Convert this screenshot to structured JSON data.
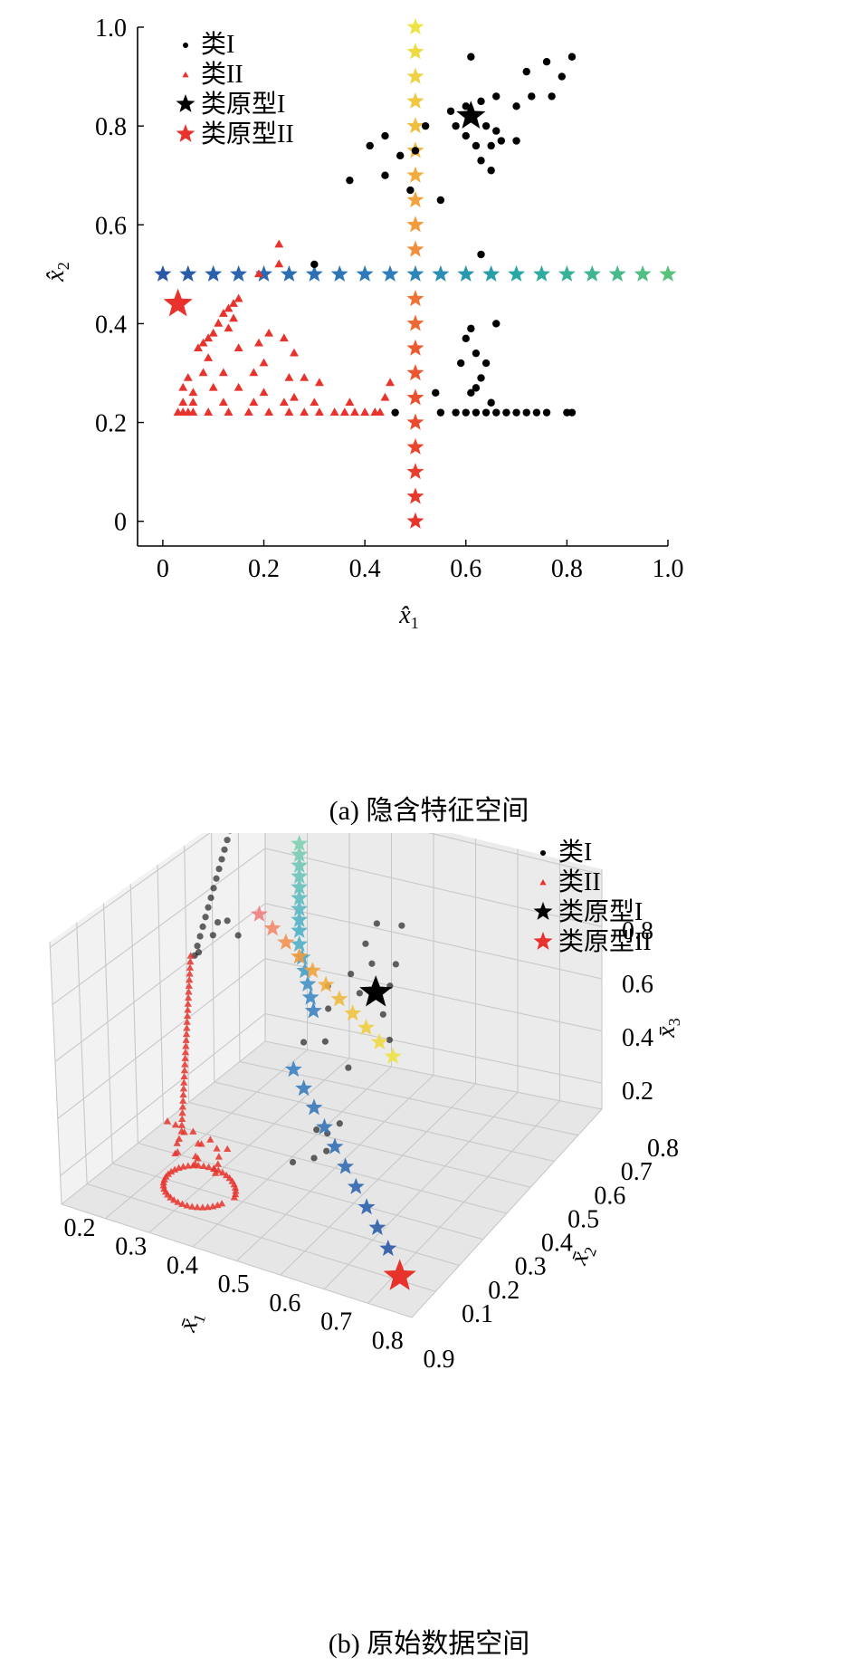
{
  "chart_data": [
    {
      "type": "scatter",
      "caption": "(a) 隐含特征空间",
      "xlabel": "x̂",
      "xlabel_sub": "1",
      "ylabel": "x̂",
      "ylabel_sub": "2",
      "xlim": [
        -0.05,
        1.0
      ],
      "ylim": [
        -0.05,
        1.0
      ],
      "xticks": [
        0,
        0.2,
        0.4,
        0.6,
        0.8,
        1.0
      ],
      "xtick_labels": [
        "0",
        "0.2",
        "0.4",
        "0.6",
        "0.8",
        "1.0"
      ],
      "yticks": [
        0,
        0.2,
        0.4,
        0.6,
        0.8,
        1.0
      ],
      "ytick_labels": [
        "0",
        "0.2",
        "0.4",
        "0.6",
        "0.8",
        "1.0"
      ],
      "legend_position": "top-left",
      "legend": [
        "类I",
        "类II",
        "类原型I",
        "类原型II"
      ],
      "series": [
        {
          "name": "类I",
          "marker": "circle",
          "color": "#000000",
          "points": [
            [
              0.61,
              0.94
            ],
            [
              0.72,
              0.91
            ],
            [
              0.76,
              0.93
            ],
            [
              0.79,
              0.9
            ],
            [
              0.81,
              0.94
            ],
            [
              0.77,
              0.86
            ],
            [
              0.73,
              0.86
            ],
            [
              0.7,
              0.84
            ],
            [
              0.66,
              0.86
            ],
            [
              0.63,
              0.85
            ],
            [
              0.6,
              0.84
            ],
            [
              0.57,
              0.83
            ],
            [
              0.58,
              0.8
            ],
            [
              0.64,
              0.8
            ],
            [
              0.66,
              0.79
            ],
            [
              0.6,
              0.78
            ],
            [
              0.62,
              0.76
            ],
            [
              0.65,
              0.76
            ],
            [
              0.67,
              0.77
            ],
            [
              0.7,
              0.77
            ],
            [
              0.63,
              0.73
            ],
            [
              0.65,
              0.71
            ],
            [
              0.52,
              0.8
            ],
            [
              0.44,
              0.78
            ],
            [
              0.41,
              0.76
            ],
            [
              0.5,
              0.75
            ],
            [
              0.47,
              0.74
            ],
            [
              0.44,
              0.7
            ],
            [
              0.37,
              0.69
            ],
            [
              0.49,
              0.67
            ],
            [
              0.55,
              0.65
            ],
            [
              0.3,
              0.52
            ],
            [
              0.63,
              0.54
            ],
            [
              0.61,
              0.39
            ],
            [
              0.6,
              0.37
            ],
            [
              0.66,
              0.4
            ],
            [
              0.62,
              0.34
            ],
            [
              0.59,
              0.32
            ],
            [
              0.64,
              0.32
            ],
            [
              0.63,
              0.29
            ],
            [
              0.62,
              0.27
            ],
            [
              0.61,
              0.26
            ],
            [
              0.65,
              0.24
            ],
            [
              0.54,
              0.26
            ],
            [
              0.46,
              0.22
            ],
            [
              0.55,
              0.22
            ],
            [
              0.58,
              0.22
            ],
            [
              0.6,
              0.22
            ],
            [
              0.62,
              0.22
            ],
            [
              0.64,
              0.22
            ],
            [
              0.66,
              0.22
            ],
            [
              0.68,
              0.22
            ],
            [
              0.7,
              0.22
            ],
            [
              0.72,
              0.22
            ],
            [
              0.74,
              0.22
            ],
            [
              0.76,
              0.22
            ],
            [
              0.8,
              0.22
            ],
            [
              0.81,
              0.22
            ]
          ]
        },
        {
          "name": "类II",
          "marker": "triangle",
          "color": "#e8332c",
          "points": [
            [
              0.23,
              0.56
            ],
            [
              0.23,
              0.52
            ],
            [
              0.19,
              0.5
            ],
            [
              0.15,
              0.45
            ],
            [
              0.14,
              0.44
            ],
            [
              0.13,
              0.43
            ],
            [
              0.12,
              0.42
            ],
            [
              0.14,
              0.41
            ],
            [
              0.11,
              0.4
            ],
            [
              0.13,
              0.39
            ],
            [
              0.1,
              0.38
            ],
            [
              0.09,
              0.37
            ],
            [
              0.08,
              0.36
            ],
            [
              0.07,
              0.35
            ],
            [
              0.19,
              0.36
            ],
            [
              0.21,
              0.38
            ],
            [
              0.24,
              0.37
            ],
            [
              0.09,
              0.33
            ],
            [
              0.15,
              0.35
            ],
            [
              0.2,
              0.32
            ],
            [
              0.26,
              0.34
            ],
            [
              0.08,
              0.3
            ],
            [
              0.05,
              0.29
            ],
            [
              0.12,
              0.3
            ],
            [
              0.18,
              0.3
            ],
            [
              0.25,
              0.29
            ],
            [
              0.28,
              0.29
            ],
            [
              0.04,
              0.27
            ],
            [
              0.06,
              0.26
            ],
            [
              0.1,
              0.27
            ],
            [
              0.15,
              0.27
            ],
            [
              0.2,
              0.26
            ],
            [
              0.26,
              0.25
            ],
            [
              0.31,
              0.28
            ],
            [
              0.04,
              0.24
            ],
            [
              0.06,
              0.24
            ],
            [
              0.12,
              0.24
            ],
            [
              0.18,
              0.24
            ],
            [
              0.24,
              0.24
            ],
            [
              0.3,
              0.24
            ],
            [
              0.37,
              0.24
            ],
            [
              0.44,
              0.25
            ],
            [
              0.45,
              0.28
            ],
            [
              0.03,
              0.22
            ],
            [
              0.04,
              0.22
            ],
            [
              0.05,
              0.22
            ],
            [
              0.06,
              0.22
            ],
            [
              0.09,
              0.22
            ],
            [
              0.13,
              0.22
            ],
            [
              0.17,
              0.22
            ],
            [
              0.21,
              0.22
            ],
            [
              0.25,
              0.22
            ],
            [
              0.28,
              0.22
            ],
            [
              0.31,
              0.22
            ],
            [
              0.34,
              0.22
            ],
            [
              0.36,
              0.22
            ],
            [
              0.38,
              0.22
            ],
            [
              0.4,
              0.22
            ],
            [
              0.42,
              0.22
            ],
            [
              0.43,
              0.22
            ]
          ]
        },
        {
          "name": "类原型I",
          "marker": "star",
          "color": "#000000",
          "points": [
            [
              0.61,
              0.82
            ]
          ]
        },
        {
          "name": "类原型II",
          "marker": "star",
          "color": "#e8332c",
          "points": [
            [
              0.03,
              0.44
            ]
          ]
        }
      ]
    },
    {
      "type": "scatter",
      "caption": "(b) 原始数据空间",
      "xlabel": "x̄",
      "xlabel_sub": "1",
      "ylabel": "x̄",
      "ylabel_sub": "2",
      "zlabel": "x̄",
      "zlabel_sub": "3",
      "xticks": [
        0.2,
        0.3,
        0.4,
        0.5,
        0.6,
        0.7,
        0.8,
        0.9
      ],
      "xtick_labels": [
        "0.2",
        "0.3",
        "0.4",
        "0.5",
        "0.6",
        "0.7",
        "0.8",
        "0.9"
      ],
      "yticks": [
        0.1,
        0.2,
        0.3,
        0.4,
        0.5,
        0.6,
        0.7,
        0.8
      ],
      "ytick_labels": [
        "0.1",
        "0.2",
        "0.3",
        "0.4",
        "0.5",
        "0.6",
        "0.7",
        "0.8"
      ],
      "zticks": [
        0.2,
        0.4,
        0.6,
        0.8
      ],
      "ztick_labels": [
        "0.2",
        "0.4",
        "0.6",
        "0.8"
      ],
      "grid": true,
      "legend_position": "top-right",
      "legend": [
        "类I",
        "类II",
        "类原型I",
        "类原型II"
      ]
    }
  ]
}
